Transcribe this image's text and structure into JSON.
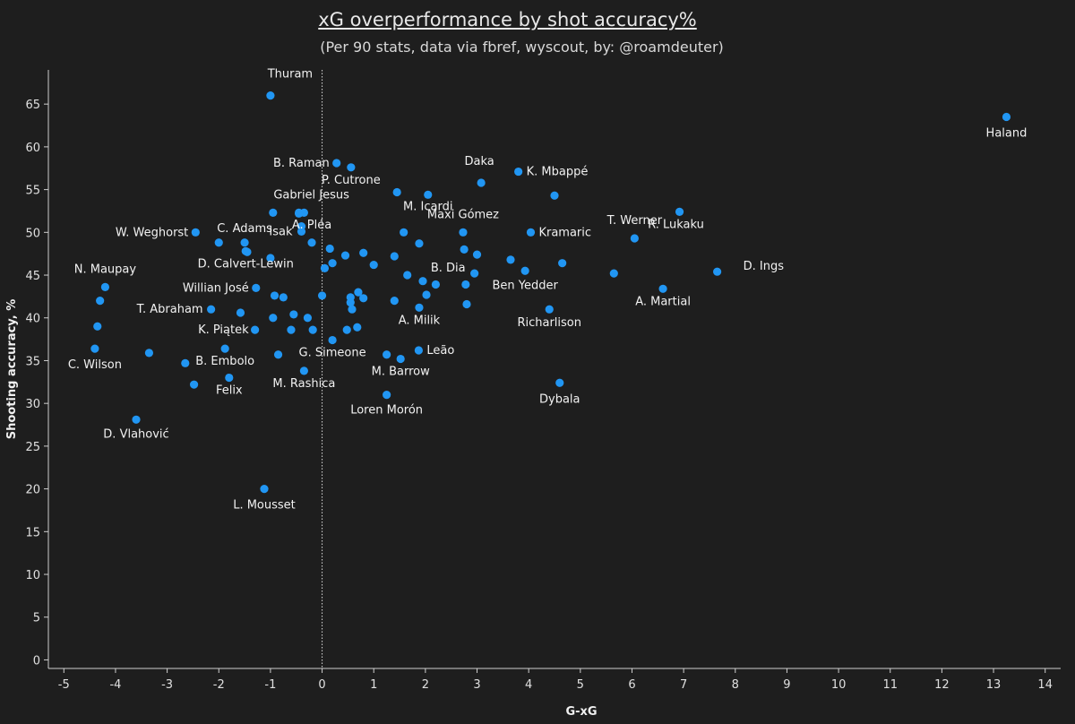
{
  "chart_data": {
    "type": "scatter",
    "title": "xG overperformance by shot accuracy%",
    "subtitle": "(Per 90 stats, data via fbref, wyscout, by: @roamdeuter)",
    "xlabel": "G-xG",
    "ylabel": "Shooting accuracy, %",
    "xlim": [
      -5.3,
      14.3
    ],
    "ylim": [
      -1,
      69
    ],
    "xticks": [
      -5,
      -4,
      -3,
      -2,
      -1,
      0,
      1,
      2,
      3,
      4,
      5,
      6,
      7,
      8,
      9,
      10,
      11,
      12,
      13,
      14
    ],
    "yticks": [
      0,
      5,
      10,
      15,
      20,
      25,
      30,
      35,
      40,
      45,
      50,
      55,
      60,
      65
    ],
    "reference_line_x": 0,
    "grid": false,
    "point_color": "#2196f3",
    "labeled_points": [
      {
        "name": "Thuram",
        "x": -1.0,
        "y": 66.0
      },
      {
        "name": "Haland",
        "x": 13.25,
        "y": 63.5
      },
      {
        "name": "B. Raman",
        "x": 0.28,
        "y": 58.1
      },
      {
        "name": "Daka",
        "x": 3.08,
        "y": 55.8
      },
      {
        "name": "K. Mbappé",
        "x": 3.8,
        "y": 57.1
      },
      {
        "name": "P. Cutrone",
        "x": 0.56,
        "y": 57.6
      },
      {
        "name": "Gabriel Jesus",
        "x": -0.45,
        "y": 52.2
      },
      {
        "name": "M. Icardi",
        "x": 2.05,
        "y": 54.4
      },
      {
        "name": "R. Lukaku",
        "x": 6.92,
        "y": 52.4
      },
      {
        "name": "W. Weghorst",
        "x": -2.45,
        "y": 50.0
      },
      {
        "name": "C. Adams",
        "x": -1.5,
        "y": 48.8
      },
      {
        "name": "Isak",
        "x": -0.4,
        "y": 50.1
      },
      {
        "name": "A. Pléa",
        "x": -0.2,
        "y": 48.8
      },
      {
        "name": "Maxi Gómez",
        "x": 2.73,
        "y": 50.0
      },
      {
        "name": "Kramaric",
        "x": 4.04,
        "y": 50.0
      },
      {
        "name": "T. Werner",
        "x": 6.05,
        "y": 49.3
      },
      {
        "name": "N. Maupay",
        "x": -4.2,
        "y": 43.6
      },
      {
        "name": "D. Calvert-Lewin",
        "x": -1.48,
        "y": 47.8
      },
      {
        "name": "D. Ings",
        "x": 7.65,
        "y": 45.4
      },
      {
        "name": "B. Dia",
        "x": 2.95,
        "y": 45.2
      },
      {
        "name": "Willian José",
        "x": -1.28,
        "y": 43.5
      },
      {
        "name": "Ben Yedder",
        "x": 3.93,
        "y": 45.5
      },
      {
        "name": "A. Martial",
        "x": 6.6,
        "y": 43.4
      },
      {
        "name": "T. Abraham",
        "x": -2.15,
        "y": 41.0
      },
      {
        "name": "Richarlison",
        "x": 4.4,
        "y": 41.0
      },
      {
        "name": "A. Milik",
        "x": 1.88,
        "y": 41.2
      },
      {
        "name": "K. Piątek",
        "x": -1.3,
        "y": 38.6
      },
      {
        "name": "Leão",
        "x": 1.87,
        "y": 36.2
      },
      {
        "name": "G. Simeone",
        "x": 0.2,
        "y": 37.4
      },
      {
        "name": "C. Wilson",
        "x": -4.4,
        "y": 36.4
      },
      {
        "name": "B. Embolo",
        "x": -1.88,
        "y": 36.4
      },
      {
        "name": "M. Barrow",
        "x": 1.52,
        "y": 35.2
      },
      {
        "name": "M. Rashica",
        "x": -0.35,
        "y": 33.8
      },
      {
        "name": "Felix",
        "x": -1.8,
        "y": 33.0
      },
      {
        "name": "Dybala",
        "x": 4.6,
        "y": 32.4
      },
      {
        "name": "Loren Morón",
        "x": 1.25,
        "y": 31.0
      },
      {
        "name": "D. Vlahović",
        "x": -3.6,
        "y": 28.1
      },
      {
        "name": "L. Mousset",
        "x": -1.12,
        "y": 20.0
      }
    ],
    "unlabeled_points": [
      {
        "x": -0.95,
        "y": 52.3
      },
      {
        "x": -0.45,
        "y": 52.3
      },
      {
        "x": -0.35,
        "y": 52.3
      },
      {
        "x": -0.4,
        "y": 50.7
      },
      {
        "x": 1.45,
        "y": 54.7
      },
      {
        "x": 4.5,
        "y": 54.3
      },
      {
        "x": -2.0,
        "y": 48.8
      },
      {
        "x": -1.45,
        "y": 47.7
      },
      {
        "x": -1.0,
        "y": 47.0
      },
      {
        "x": 0.15,
        "y": 48.1
      },
      {
        "x": 0.45,
        "y": 47.3
      },
      {
        "x": 0.8,
        "y": 47.6
      },
      {
        "x": 1.4,
        "y": 47.2
      },
      {
        "x": 1.58,
        "y": 50.0
      },
      {
        "x": 1.88,
        "y": 48.7
      },
      {
        "x": 2.75,
        "y": 48.0
      },
      {
        "x": 3.0,
        "y": 47.4
      },
      {
        "x": 3.65,
        "y": 46.8
      },
      {
        "x": 4.65,
        "y": 46.4
      },
      {
        "x": 5.65,
        "y": 45.2
      },
      {
        "x": 0.05,
        "y": 45.8
      },
      {
        "x": 0.2,
        "y": 46.4
      },
      {
        "x": 1.0,
        "y": 46.2
      },
      {
        "x": 1.65,
        "y": 45.0
      },
      {
        "x": 1.95,
        "y": 44.3
      },
      {
        "x": 2.2,
        "y": 43.9
      },
      {
        "x": 2.02,
        "y": 42.7
      },
      {
        "x": 2.78,
        "y": 43.9
      },
      {
        "x": -0.92,
        "y": 42.6
      },
      {
        "x": -0.75,
        "y": 42.4
      },
      {
        "x": 0.0,
        "y": 42.6
      },
      {
        "x": 0.55,
        "y": 42.4
      },
      {
        "x": 0.55,
        "y": 41.8
      },
      {
        "x": 0.7,
        "y": 43.0
      },
      {
        "x": 0.8,
        "y": 42.3
      },
      {
        "x": 1.4,
        "y": 42.0
      },
      {
        "x": 2.8,
        "y": 41.6
      },
      {
        "x": -1.58,
        "y": 40.6
      },
      {
        "x": -0.95,
        "y": 40.0
      },
      {
        "x": -0.55,
        "y": 40.4
      },
      {
        "x": -0.28,
        "y": 40.0
      },
      {
        "x": 0.58,
        "y": 41.0
      },
      {
        "x": -0.6,
        "y": 38.6
      },
      {
        "x": -0.18,
        "y": 38.6
      },
      {
        "x": 0.48,
        "y": 38.6
      },
      {
        "x": 0.68,
        "y": 38.9
      },
      {
        "x": -4.3,
        "y": 42.0
      },
      {
        "x": -4.35,
        "y": 39.0
      },
      {
        "x": -3.35,
        "y": 35.9
      },
      {
        "x": -2.65,
        "y": 34.7
      },
      {
        "x": -0.85,
        "y": 35.7
      },
      {
        "x": 1.25,
        "y": 35.7
      },
      {
        "x": -2.48,
        "y": 32.2
      }
    ]
  }
}
